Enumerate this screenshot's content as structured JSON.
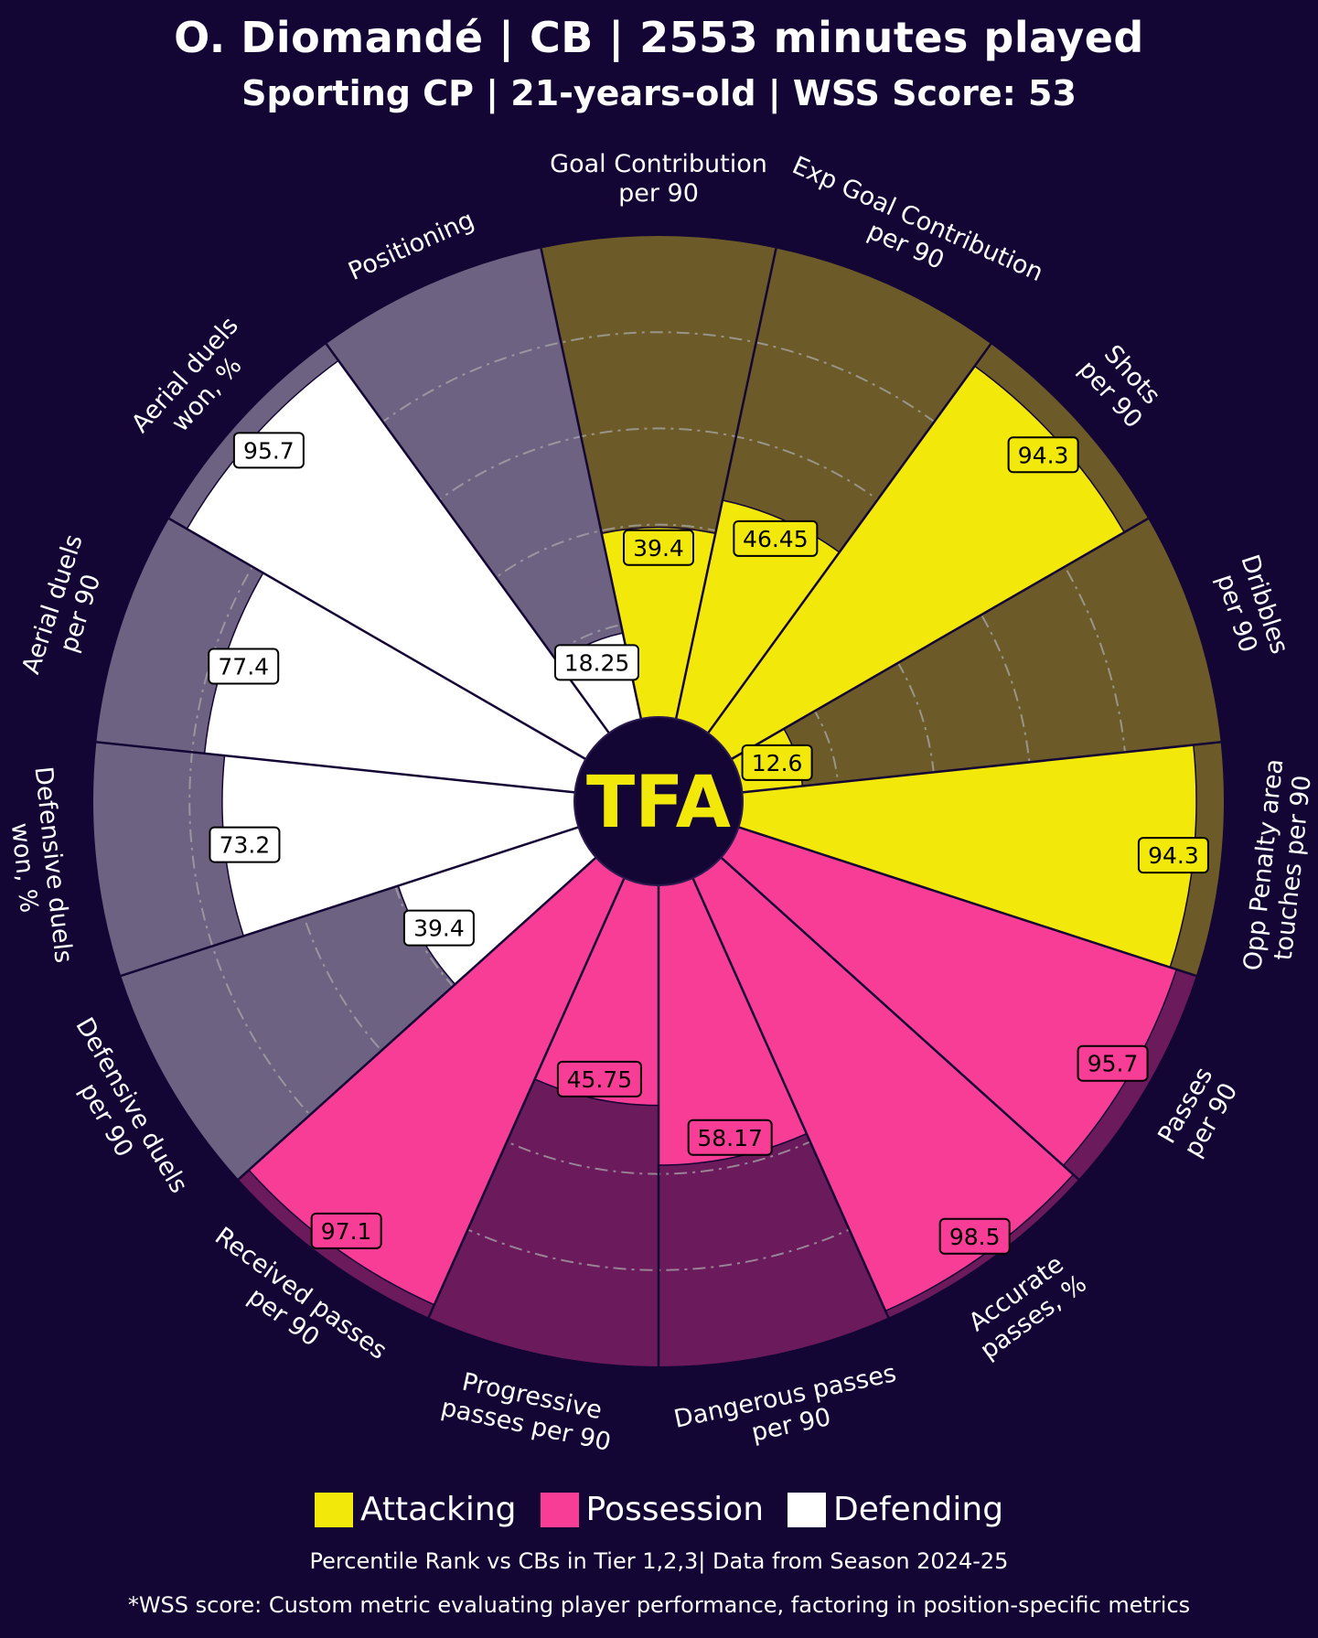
{
  "header": {
    "title": "O. Diomandé | CB | 2553 minutes played",
    "subtitle": "Sporting CP | 21-years-old | WSS Score: 53"
  },
  "logo": {
    "text": "TFA"
  },
  "legend": [
    {
      "label": "Attacking",
      "color": "#f2e80a"
    },
    {
      "label": "Possession",
      "color": "#f83d97"
    },
    {
      "label": "Defending",
      "color": "#ffffff"
    }
  ],
  "footer": {
    "note1": "Percentile Rank vs CBs in Tier 1,2,3| Data from Season 2024-25",
    "note2": "*WSS score: Custom metric evaluating player performance, factoring in position-specific metrics"
  },
  "chart_data": {
    "type": "radar-pizza",
    "title": "O. Diomandé | CB | 2553 minutes played",
    "ylim": [
      0,
      100
    ],
    "colors": {
      "Attacking": {
        "fill": "#f2e80a",
        "bg": "#6c5b29",
        "text": "#000000"
      },
      "Possession": {
        "fill": "#f83d97",
        "bg": "#6b1a5c",
        "text": "#000000"
      },
      "Defending": {
        "fill": "#ffffff",
        "bg": "#6e6283",
        "text": "#000000"
      }
    },
    "series": [
      {
        "label": "Goal Contribution\nper 90",
        "value": 39.4,
        "category": "Attacking"
      },
      {
        "label": "Exp Goal Contribution\nper 90",
        "value": 46.45,
        "category": "Attacking"
      },
      {
        "label": "Shots\nper 90",
        "value": 94.3,
        "category": "Attacking"
      },
      {
        "label": "Dribbles\nper 90",
        "value": 12.6,
        "category": "Attacking"
      },
      {
        "label": "Opp Penalty area\ntouches per 90",
        "value": 94.3,
        "category": "Attacking"
      },
      {
        "label": "Passes\nper 90",
        "value": 95.7,
        "category": "Possession"
      },
      {
        "label": "Accurate\npasses, %",
        "value": 98.5,
        "category": "Possession"
      },
      {
        "label": "Dangerous passes\nper 90",
        "value": 58.17,
        "category": "Possession"
      },
      {
        "label": "Progressive\npasses per 90",
        "value": 45.75,
        "category": "Possession"
      },
      {
        "label": "Received passes\nper 90",
        "value": 97.1,
        "category": "Possession"
      },
      {
        "label": "Defensive duels\nper 90",
        "value": 39.4,
        "category": "Defending"
      },
      {
        "label": "Defensive duels\nwon, %",
        "value": 73.2,
        "category": "Defending"
      },
      {
        "label": "Aerial duels\nper 90",
        "value": 77.4,
        "category": "Defending"
      },
      {
        "label": "Aerial duels\nwon, %",
        "value": 95.7,
        "category": "Defending"
      },
      {
        "label": "Positioning",
        "value": 18.25,
        "category": "Defending"
      }
    ]
  }
}
